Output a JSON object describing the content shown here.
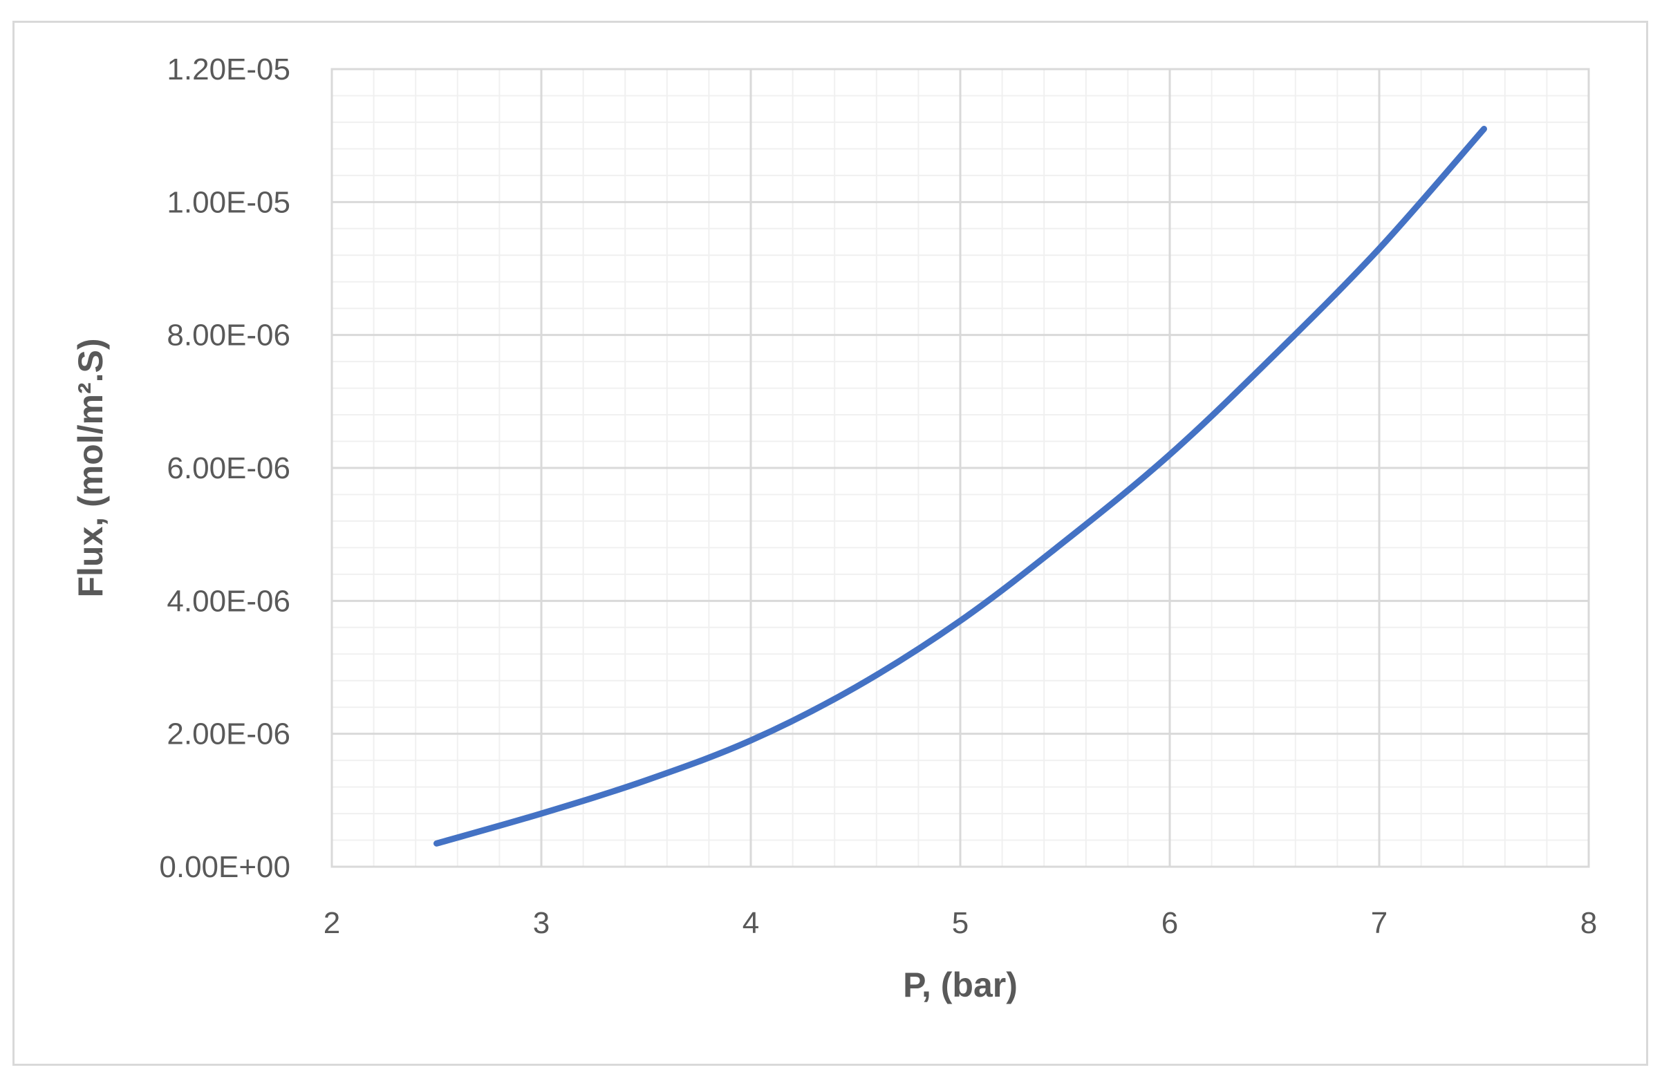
{
  "chart_data": {
    "type": "line",
    "title": "",
    "xlabel": "P,  (bar)",
    "ylabel": "Flux, (mol/m².S)",
    "xlim": [
      2,
      8
    ],
    "ylim": [
      0,
      1.2e-05
    ],
    "x_ticks": [
      2,
      3,
      4,
      5,
      6,
      7,
      8
    ],
    "x_tick_labels": [
      "2",
      "3",
      "4",
      "5",
      "6",
      "7",
      "8"
    ],
    "y_ticks": [
      0,
      2e-06,
      4e-06,
      6e-06,
      8e-06,
      1e-05,
      1.2e-05
    ],
    "y_tick_labels": [
      "0.00E+00",
      "2.00E-06",
      "4.00E-06",
      "6.00E-06",
      "8.00E-06",
      "1.00E-05",
      "1.20E-05"
    ],
    "grid": "major and minor",
    "legend": "none",
    "series": [
      {
        "color": "#4472c4",
        "x": [
          2.5,
          3.0,
          3.5,
          4.0,
          4.5,
          5.0,
          5.5,
          6.0,
          6.5,
          7.0,
          7.5
        ],
        "y": [
          3.5e-07,
          8e-07,
          1.3e-06,
          1.9e-06,
          2.7e-06,
          3.7e-06,
          4.9e-06,
          6.2e-06,
          7.7e-06,
          9.3e-06,
          1.11e-05
        ]
      }
    ]
  }
}
